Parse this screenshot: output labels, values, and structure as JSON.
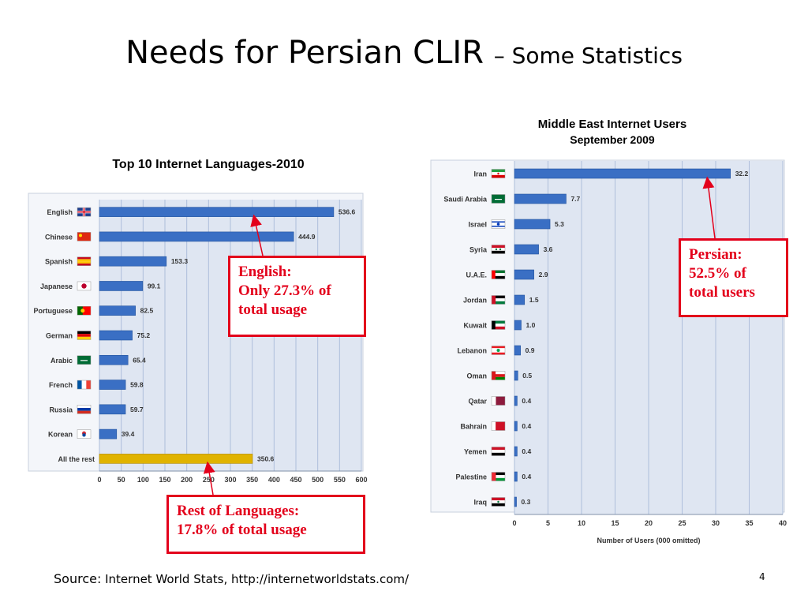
{
  "slide": {
    "title_main": "Needs for Persian CLIR",
    "title_sub": "– Some Statistics",
    "source_label": "Source:",
    "source_text": "Internet World Stats, http://internetworldstats.com/",
    "page_number": "4"
  },
  "callouts": {
    "english": [
      "English:",
      "Only 27.3% of",
      "total usage"
    ],
    "rest": [
      "Rest of Languages:",
      "17.8% of  total usage"
    ],
    "persian": [
      "Persian:",
      "52.5% of",
      "total users"
    ]
  },
  "colors": {
    "bar_blue": "#3a6fc4",
    "bar_gold": "#e0b300",
    "plot_bg": "#dfe6f2",
    "grid": "#aebedb",
    "callout_red": "#e3001b",
    "label_color": "#333333"
  },
  "chart_data": [
    {
      "type": "bar",
      "orientation": "horizontal",
      "title": "Top 10 Internet Languages-2010",
      "categories": [
        "English",
        "Chinese",
        "Spanish",
        "Japanese",
        "Portuguese",
        "German",
        "Arabic",
        "French",
        "Russia",
        "Korean",
        "All the rest"
      ],
      "flags": [
        "uk-flag-icon",
        "china-flag-icon",
        "spain-flag-icon",
        "japan-flag-icon",
        "portugal-flag-icon",
        "germany-flag-icon",
        "saudi-flag-icon",
        "france-flag-icon",
        "russia-flag-icon",
        "korea-flag-icon",
        ""
      ],
      "values": [
        536.6,
        444.9,
        153.3,
        99.1,
        82.5,
        75.2,
        65.4,
        59.8,
        59.7,
        39.4,
        350.6
      ],
      "value_labels": [
        "536.6",
        "444.9",
        "153.3",
        "99.1",
        "82.5",
        "75.2",
        "65.4",
        "59.8",
        "59.7",
        "39.4",
        "350.6"
      ],
      "highlight": [
        false,
        false,
        false,
        false,
        false,
        false,
        false,
        false,
        false,
        false,
        true
      ],
      "xlim": [
        0,
        600
      ],
      "xticks": [
        "0",
        "50",
        "100",
        "150",
        "200",
        "250",
        "300",
        "350",
        "400",
        "450",
        "500",
        "550",
        "600"
      ],
      "grid": true
    },
    {
      "type": "bar",
      "orientation": "horizontal",
      "title": "Middle East Internet Users",
      "subtitle": "September 2009",
      "categories": [
        "Iran",
        "Saudi Arabia",
        "Israel",
        "Syria",
        "U.A.E.",
        "Jordan",
        "Kuwait",
        "Lebanon",
        "Oman",
        "Qatar",
        "Bahrain",
        "Yemen",
        "Palestine",
        "Iraq"
      ],
      "flags": [
        "iran-flag-icon",
        "saudi-flag-icon",
        "israel-flag-icon",
        "syria-flag-icon",
        "uae-flag-icon",
        "jordan-flag-icon",
        "kuwait-flag-icon",
        "lebanon-flag-icon",
        "oman-flag-icon",
        "qatar-flag-icon",
        "bahrain-flag-icon",
        "yemen-flag-icon",
        "palestine-flag-icon",
        "iraq-flag-icon"
      ],
      "values": [
        32.2,
        7.7,
        5.3,
        3.6,
        2.9,
        1.5,
        1.0,
        0.9,
        0.5,
        0.4,
        0.4,
        0.4,
        0.4,
        0.3
      ],
      "value_labels": [
        "32.2",
        "7.7",
        "5.3",
        "3.6",
        "2.9",
        "1.5",
        "1.0",
        "0.9",
        "0.5",
        "0.4",
        "0.4",
        "0.4",
        "0.4",
        "0.3"
      ],
      "xlim": [
        0,
        40
      ],
      "xticks": [
        "0",
        "5",
        "10",
        "15",
        "20",
        "25",
        "30",
        "35",
        "40"
      ],
      "xlabel": "Number of Users (000 omitted)",
      "grid": true
    }
  ]
}
